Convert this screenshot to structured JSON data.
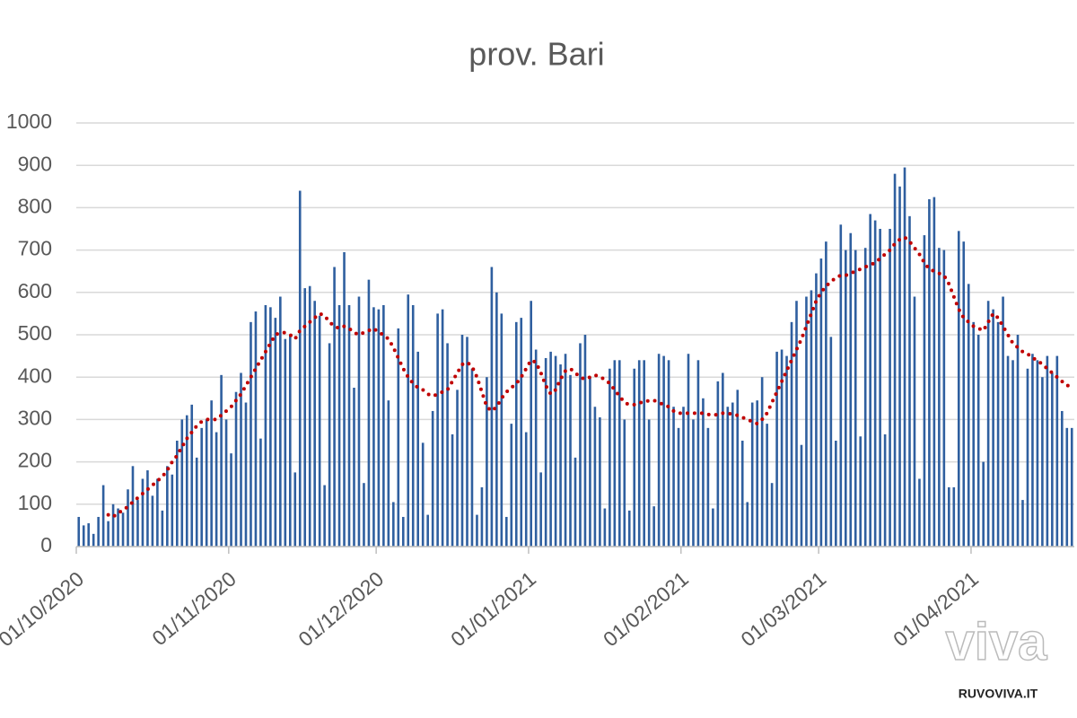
{
  "chart_data": {
    "type": "bar-line",
    "title": "prov. Bari",
    "categories": [
      "01/10/2020",
      null,
      null,
      null,
      null,
      null,
      null,
      null,
      null,
      null,
      null,
      null,
      null,
      null,
      null,
      null,
      null,
      null,
      null,
      null,
      null,
      null,
      null,
      null,
      null,
      null,
      null,
      null,
      null,
      null,
      null,
      "01/11/2020",
      null,
      null,
      null,
      null,
      null,
      null,
      null,
      null,
      null,
      null,
      null,
      null,
      null,
      null,
      null,
      null,
      null,
      null,
      null,
      null,
      null,
      null,
      null,
      null,
      null,
      null,
      null,
      null,
      null,
      "01/12/2020",
      null,
      null,
      null,
      null,
      null,
      null,
      null,
      null,
      null,
      null,
      null,
      null,
      null,
      null,
      null,
      null,
      null,
      null,
      null,
      null,
      null,
      null,
      null,
      null,
      null,
      null,
      null,
      null,
      null,
      null,
      "01/01/2021",
      null,
      null,
      null,
      null,
      null,
      null,
      null,
      null,
      null,
      null,
      null,
      null,
      null,
      null,
      null,
      null,
      null,
      null,
      null,
      null,
      null,
      null,
      null,
      null,
      null,
      null,
      null,
      null,
      null,
      null,
      "01/02/2021",
      null,
      null,
      null,
      null,
      null,
      null,
      null,
      null,
      null,
      null,
      null,
      null,
      null,
      null,
      null,
      null,
      null,
      null,
      null,
      null,
      null,
      null,
      null,
      null,
      null,
      null,
      null,
      "01/03/2021",
      null,
      null,
      null,
      null,
      null,
      null,
      null,
      null,
      null,
      null,
      null,
      null,
      null,
      null,
      null,
      null,
      null,
      null,
      null,
      null,
      null,
      null,
      null,
      null,
      null,
      null,
      null,
      null,
      null,
      null,
      "01/04/2021",
      null,
      null,
      null,
      null,
      null,
      null,
      null,
      null,
      null,
      null,
      null,
      null,
      null,
      null,
      null,
      null,
      null,
      null,
      null,
      null
    ],
    "series": [
      {
        "color": "#2f5f9f",
        "values": [
          70,
          50,
          55,
          30,
          70,
          145,
          60,
          100,
          90,
          80,
          135,
          190,
          110,
          160,
          180,
          120,
          160,
          85,
          190,
          170,
          250,
          300,
          310,
          335,
          210,
          280,
          300,
          345,
          270,
          405,
          300,
          220,
          365,
          410,
          340,
          530,
          555,
          255,
          570,
          565,
          540,
          590,
          490,
          500,
          175,
          840,
          610,
          615,
          580,
          545,
          145,
          480,
          660,
          570,
          695,
          570,
          375,
          590,
          150,
          630,
          565,
          560,
          570,
          345,
          105,
          515,
          70,
          595,
          570,
          460,
          245,
          75,
          320,
          550,
          560,
          480,
          265,
          370,
          500,
          495,
          420,
          75,
          140,
          400,
          660,
          600,
          550,
          70,
          290,
          530,
          540,
          270,
          580,
          465,
          175,
          445,
          460,
          450,
          430,
          455,
          405,
          210,
          480,
          500,
          400,
          330,
          305,
          90,
          420,
          440,
          440,
          300,
          85,
          420,
          440,
          440,
          300,
          95,
          455,
          450,
          440,
          330,
          280,
          330,
          455,
          300,
          440,
          350,
          280,
          90,
          390,
          410,
          330,
          340,
          370,
          250,
          105,
          340,
          345,
          400,
          290,
          150,
          460,
          465,
          450,
          530,
          580,
          240,
          590,
          605,
          645,
          680,
          720,
          495,
          250,
          760,
          700,
          740,
          700,
          260,
          705,
          785,
          770,
          750,
          265,
          750,
          880,
          850,
          895,
          780,
          590,
          160,
          735,
          820,
          825,
          705,
          700,
          140,
          140,
          745,
          720,
          620,
          530,
          500,
          200,
          580,
          560,
          530,
          590,
          450,
          440,
          500,
          110,
          420,
          455,
          440,
          400,
          450,
          410,
          450,
          320,
          280,
          280
        ]
      },
      {
        "color": "#c00000",
        "style": "dotted",
        "values": [
          null,
          null,
          null,
          null,
          null,
          null,
          75,
          70,
          80,
          85,
          95,
          105,
          115,
          125,
          135,
          145,
          155,
          165,
          180,
          200,
          215,
          235,
          255,
          270,
          285,
          295,
          300,
          300,
          300,
          310,
          320,
          330,
          345,
          360,
          380,
          400,
          420,
          440,
          460,
          480,
          500,
          505,
          505,
          500,
          490,
          510,
          520,
          530,
          540,
          550,
          545,
          530,
          520,
          515,
          520,
          515,
          505,
          500,
          505,
          510,
          515,
          505,
          500,
          490,
          470,
          445,
          420,
          400,
          385,
          375,
          370,
          360,
          355,
          360,
          365,
          370,
          390,
          410,
          430,
          435,
          425,
          400,
          365,
          330,
          320,
          330,
          350,
          365,
          375,
          385,
          400,
          420,
          440,
          435,
          410,
          380,
          360,
          370,
          395,
          415,
          420,
          410,
          400,
          395,
          400,
          405,
          400,
          395,
          385,
          370,
          355,
          340,
          335,
          335,
          340,
          340,
          345,
          345,
          340,
          335,
          330,
          320,
          315,
          315,
          315,
          315,
          315,
          315,
          312,
          310,
          312,
          315,
          315,
          312,
          310,
          305,
          300,
          295,
          290,
          300,
          315,
          340,
          365,
          390,
          415,
          440,
          465,
          490,
          520,
          550,
          580,
          600,
          615,
          625,
          635,
          640,
          640,
          645,
          650,
          655,
          660,
          665,
          670,
          680,
          690,
          700,
          715,
          725,
          730,
          720,
          705,
          690,
          670,
          655,
          650,
          645,
          640,
          620,
          590,
          560,
          540,
          530,
          520,
          515,
          510,
          530,
          550,
          540,
          520,
          500,
          480,
          470,
          460,
          455,
          445,
          440,
          430,
          420,
          410,
          400,
          390,
          380,
          380
        ]
      }
    ],
    "ylim": [
      0,
      1000
    ],
    "yticks": [
      0,
      100,
      200,
      300,
      400,
      500,
      600,
      700,
      800,
      900,
      1000
    ],
    "grid": true,
    "watermark": {
      "logo": "viva",
      "site": "RUVOVIVA.IT"
    }
  }
}
